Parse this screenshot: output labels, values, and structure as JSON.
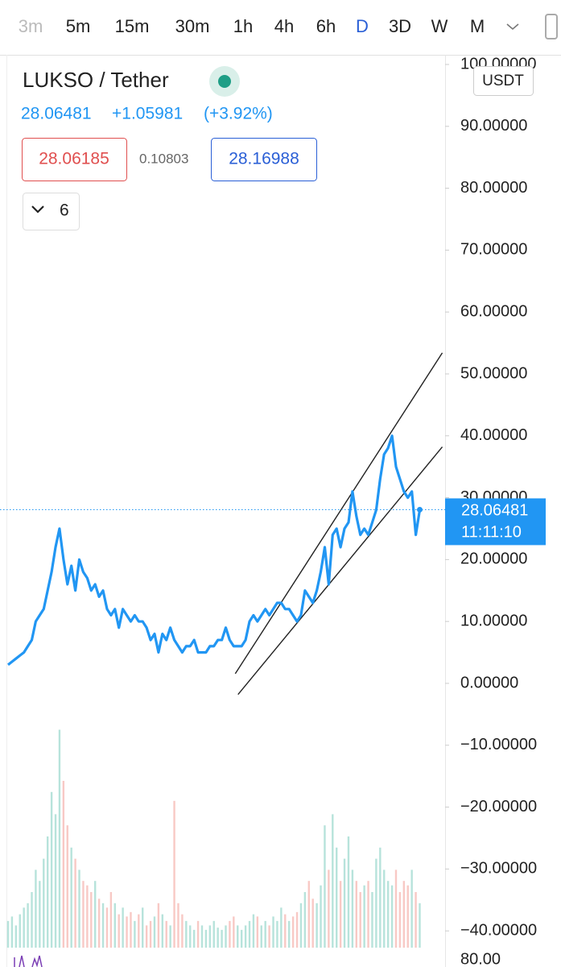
{
  "toolbar": {
    "intervals": [
      "3m",
      "5m",
      "15m",
      "30m",
      "1h",
      "4h",
      "6h",
      "D",
      "3D",
      "W",
      "M"
    ],
    "active_index": 7
  },
  "header": {
    "title": "LUKSO / Tether",
    "last": "28.06481",
    "change": "+1.05981",
    "change_pct": "(+3.92%)",
    "bid": "28.06185",
    "spread": "0.10803",
    "ask": "28.16988",
    "indicators_count": "6"
  },
  "chart_data": {
    "type": "line",
    "currency": "USDT",
    "color": "#2196f3",
    "xlim": [
      0,
      110
    ],
    "ylim": [
      -43.23,
      101.3
    ],
    "yticks": [
      {
        "value": 100,
        "label": "100.00000"
      },
      {
        "value": 90,
        "label": "90.00000"
      },
      {
        "value": 80,
        "label": "80.00000"
      },
      {
        "value": 70,
        "label": "70.00000"
      },
      {
        "value": 60,
        "label": "60.00000"
      },
      {
        "value": 50,
        "label": "50.00000"
      },
      {
        "value": 40,
        "label": "40.00000"
      },
      {
        "value": 30,
        "label": "30.00000"
      },
      {
        "value": 20,
        "label": "20.00000"
      },
      {
        "value": 10,
        "label": "10.00000"
      },
      {
        "value": 0,
        "label": "0.00000"
      },
      {
        "value": -10,
        "label": "−10.00000"
      },
      {
        "value": -20,
        "label": "−20.00000"
      },
      {
        "value": -30,
        "label": "−30.00000"
      },
      {
        "value": -40,
        "label": "−40.00000"
      }
    ],
    "values": [
      3,
      3.5,
      4,
      4.5,
      5,
      6,
      7,
      10,
      11,
      12,
      15,
      18,
      22,
      25,
      20,
      16,
      19,
      15,
      20,
      18,
      17,
      15,
      16,
      14,
      15,
      12,
      11,
      12,
      9,
      12,
      11,
      10,
      11,
      10,
      10,
      9,
      7,
      8,
      5,
      8,
      7,
      9,
      7,
      6,
      5,
      6,
      6,
      7,
      5,
      5,
      5,
      6,
      6,
      7,
      7,
      9,
      7,
      6,
      6,
      6,
      7,
      10,
      11,
      10,
      11,
      12,
      11,
      12,
      13,
      13,
      12,
      12,
      11,
      10,
      11,
      15,
      14,
      13,
      15,
      18,
      22,
      16,
      24,
      25,
      22,
      25,
      26,
      31,
      27,
      24,
      25,
      24,
      26,
      28,
      33,
      37,
      38,
      40,
      35,
      33,
      31,
      30,
      31,
      24,
      28
    ],
    "volume": [
      12,
      14,
      10,
      15,
      18,
      20,
      25,
      35,
      30,
      40,
      50,
      70,
      60,
      98,
      75,
      55,
      45,
      40,
      35,
      30,
      28,
      25,
      30,
      22,
      20,
      18,
      25,
      20,
      15,
      18,
      14,
      16,
      12,
      15,
      18,
      10,
      12,
      14,
      20,
      15,
      12,
      10,
      66,
      20,
      15,
      12,
      10,
      8,
      12,
      10,
      8,
      10,
      12,
      9,
      8,
      10,
      12,
      14,
      10,
      8,
      10,
      12,
      15,
      14,
      10,
      12,
      10,
      14,
      12,
      18,
      15,
      12,
      14,
      16,
      20,
      25,
      30,
      22,
      20,
      28,
      55,
      35,
      60,
      45,
      30,
      40,
      50,
      35,
      30,
      25,
      28,
      30,
      25,
      40,
      45,
      35,
      30,
      28,
      35,
      25,
      30,
      28,
      35,
      25,
      20
    ],
    "volume_lim": [
      0,
      100
    ],
    "volume_axis_label": "80.00",
    "trendlines": [
      {
        "x": [
          57.4,
          109.7
        ],
        "values": [
          1.56,
          53.4
        ]
      },
      {
        "x": [
          58.1,
          109.7
        ],
        "values": [
          -1.8,
          38.2
        ]
      }
    ],
    "last_price": {
      "value": 28.06481,
      "label": "28.06481"
    },
    "countdown": "11:11:10"
  }
}
